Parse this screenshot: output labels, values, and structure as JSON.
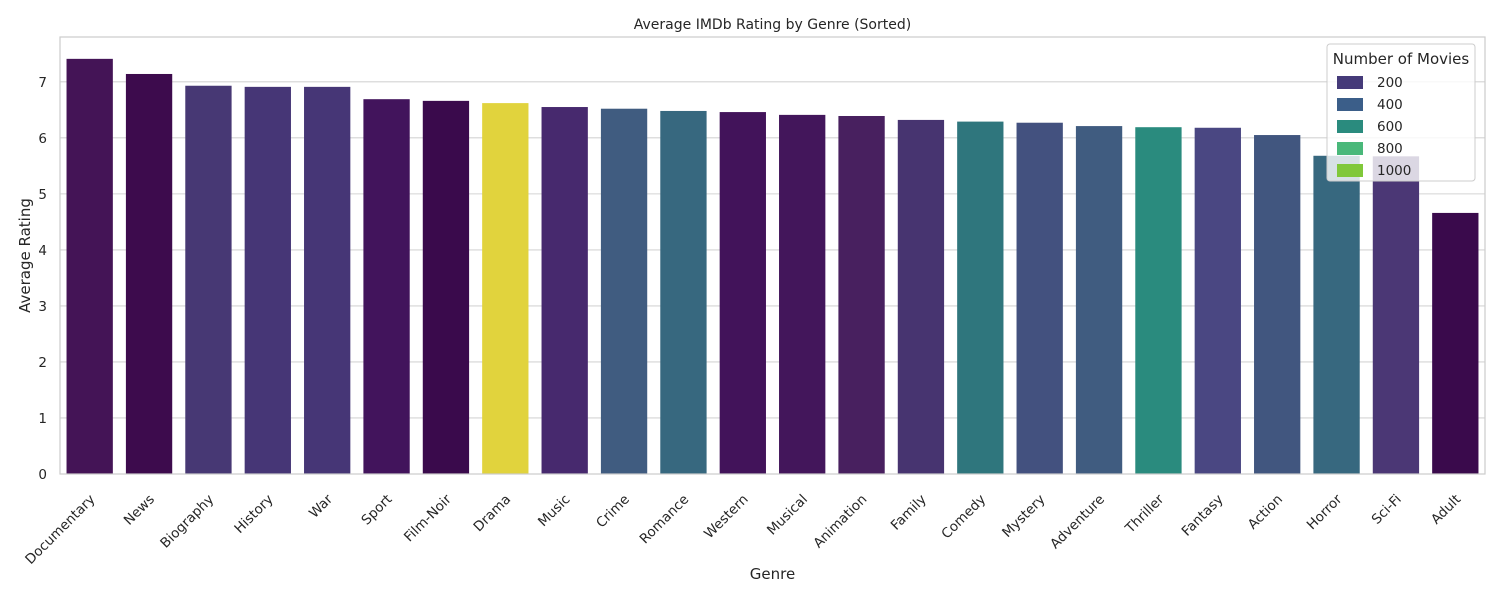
{
  "chart_data": {
    "type": "bar",
    "title": "Average IMDb Rating by Genre (Sorted)",
    "xlabel": "Genre",
    "ylabel": "Average Rating",
    "ylim": [
      0,
      7.8
    ],
    "yticks": [
      0,
      1,
      2,
      3,
      4,
      5,
      6,
      7
    ],
    "grid": true,
    "categories": [
      "Documentary",
      "News",
      "Biography",
      "History",
      "War",
      "Sport",
      "Film-Noir",
      "Drama",
      "Music",
      "Crime",
      "Romance",
      "Western",
      "Musical",
      "Animation",
      "Family",
      "Comedy",
      "Mystery",
      "Adventure",
      "Thriller",
      "Fantasy",
      "Action",
      "Horror",
      "Sci-Fi",
      "Adult"
    ],
    "values": [
      7.41,
      7.14,
      6.93,
      6.91,
      6.91,
      6.69,
      6.66,
      6.62,
      6.55,
      6.52,
      6.48,
      6.46,
      6.41,
      6.39,
      6.32,
      6.29,
      6.27,
      6.21,
      6.19,
      6.18,
      6.05,
      5.68,
      5.67,
      4.66
    ],
    "colors": [
      "#441456",
      "#3d0b4d",
      "#473874",
      "#463676",
      "#463676",
      "#42145c",
      "#3a0a4c",
      "#e1d33d",
      "#47296e",
      "#405c80",
      "#37687f",
      "#42135a",
      "#43165b",
      "#48205f",
      "#473470",
      "#2f767d",
      "#43517f",
      "#405c80",
      "#2a8b7e",
      "#4a4782",
      "#41567f",
      "#37687f",
      "#4b3775",
      "#3a0a4c"
    ],
    "legend": {
      "title": "Number of Movies",
      "position": "top-right",
      "entries": [
        {
          "label": "200",
          "color": "#453a79"
        },
        {
          "label": "400",
          "color": "#3b5e89"
        },
        {
          "label": "600",
          "color": "#2a8b7e"
        },
        {
          "label": "800",
          "color": "#49b87a"
        },
        {
          "label": "1000",
          "color": "#80c83a"
        }
      ]
    }
  }
}
